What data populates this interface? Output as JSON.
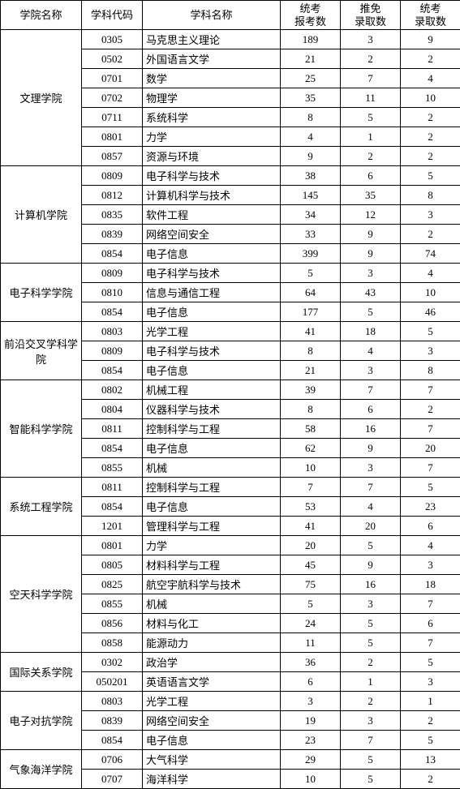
{
  "headers": {
    "college": "学院名称",
    "code": "学科代码",
    "subject": "学科名称",
    "exam_apply": "统考\n报考数",
    "rec_admit": "推免\n录取数",
    "exam_admit": "统考\n录取数"
  },
  "groups": [
    {
      "college": "文理学院",
      "rows": [
        {
          "code": "0305",
          "subject": "马克思主义理论",
          "a": "189",
          "b": "3",
          "c": "9"
        },
        {
          "code": "0502",
          "subject": "外国语言文学",
          "a": "21",
          "b": "2",
          "c": "2"
        },
        {
          "code": "0701",
          "subject": "数学",
          "a": "25",
          "b": "7",
          "c": "4"
        },
        {
          "code": "0702",
          "subject": "物理学",
          "a": "35",
          "b": "11",
          "c": "10"
        },
        {
          "code": "0711",
          "subject": "系统科学",
          "a": "8",
          "b": "5",
          "c": "2"
        },
        {
          "code": "0801",
          "subject": "力学",
          "a": "4",
          "b": "1",
          "c": "2"
        },
        {
          "code": "0857",
          "subject": "资源与环境",
          "a": "9",
          "b": "2",
          "c": "2"
        }
      ]
    },
    {
      "college": "计算机学院",
      "rows": [
        {
          "code": "0809",
          "subject": "电子科学与技术",
          "a": "38",
          "b": "6",
          "c": "5"
        },
        {
          "code": "0812",
          "subject": "计算机科学与技术",
          "a": "145",
          "b": "35",
          "c": "8"
        },
        {
          "code": "0835",
          "subject": "软件工程",
          "a": "34",
          "b": "12",
          "c": "3"
        },
        {
          "code": "0839",
          "subject": "网络空间安全",
          "a": "33",
          "b": "9",
          "c": "2"
        },
        {
          "code": "0854",
          "subject": "电子信息",
          "a": "399",
          "b": "9",
          "c": "74"
        }
      ]
    },
    {
      "college": "电子科学学院",
      "rows": [
        {
          "code": "0809",
          "subject": "电子科学与技术",
          "a": "5",
          "b": "3",
          "c": "4"
        },
        {
          "code": "0810",
          "subject": "信息与通信工程",
          "a": "64",
          "b": "43",
          "c": "10"
        },
        {
          "code": "0854",
          "subject": "电子信息",
          "a": "177",
          "b": "5",
          "c": "46"
        }
      ]
    },
    {
      "college": "前沿交叉学科学院",
      "rows": [
        {
          "code": "0803",
          "subject": "光学工程",
          "a": "41",
          "b": "18",
          "c": "5"
        },
        {
          "code": "0809",
          "subject": "电子科学与技术",
          "a": "8",
          "b": "4",
          "c": "3"
        },
        {
          "code": "0854",
          "subject": "电子信息",
          "a": "21",
          "b": "3",
          "c": "8"
        }
      ]
    },
    {
      "college": "智能科学学院",
      "rows": [
        {
          "code": "0802",
          "subject": "机械工程",
          "a": "39",
          "b": "7",
          "c": "7"
        },
        {
          "code": "0804",
          "subject": "仪器科学与技术",
          "a": "8",
          "b": "6",
          "c": "2"
        },
        {
          "code": "0811",
          "subject": "控制科学与工程",
          "a": "58",
          "b": "16",
          "c": "7"
        },
        {
          "code": "0854",
          "subject": "电子信息",
          "a": "62",
          "b": "9",
          "c": "20"
        },
        {
          "code": "0855",
          "subject": "机械",
          "a": "10",
          "b": "3",
          "c": "7"
        }
      ]
    },
    {
      "college": "系统工程学院",
      "rows": [
        {
          "code": "0811",
          "subject": "控制科学与工程",
          "a": "7",
          "b": "7",
          "c": "5"
        },
        {
          "code": "0854",
          "subject": "电子信息",
          "a": "53",
          "b": "4",
          "c": "23"
        },
        {
          "code": "1201",
          "subject": "管理科学与工程",
          "a": "41",
          "b": "20",
          "c": "6"
        }
      ]
    },
    {
      "college": "空天科学学院",
      "rows": [
        {
          "code": "0801",
          "subject": "力学",
          "a": "20",
          "b": "5",
          "c": "4"
        },
        {
          "code": "0805",
          "subject": "材料科学与工程",
          "a": "45",
          "b": "9",
          "c": "3"
        },
        {
          "code": "0825",
          "subject": "航空宇航科学与技术",
          "a": "75",
          "b": "16",
          "c": "18"
        },
        {
          "code": "0855",
          "subject": "机械",
          "a": "5",
          "b": "3",
          "c": "7"
        },
        {
          "code": "0856",
          "subject": "材料与化工",
          "a": "24",
          "b": "5",
          "c": "6"
        },
        {
          "code": "0858",
          "subject": "能源动力",
          "a": "11",
          "b": "5",
          "c": "7"
        }
      ]
    },
    {
      "college": "国际关系学院",
      "rows": [
        {
          "code": "0302",
          "subject": "政治学",
          "a": "36",
          "b": "2",
          "c": "5"
        },
        {
          "code": "050201",
          "subject": "英语语言文学",
          "a": "6",
          "b": "1",
          "c": "3"
        }
      ]
    },
    {
      "college": "电子对抗学院",
      "rows": [
        {
          "code": "0803",
          "subject": "光学工程",
          "a": "3",
          "b": "2",
          "c": "1"
        },
        {
          "code": "0839",
          "subject": "网络空间安全",
          "a": "19",
          "b": "3",
          "c": "2"
        },
        {
          "code": "0854",
          "subject": "电子信息",
          "a": "23",
          "b": "7",
          "c": "5"
        }
      ]
    },
    {
      "college": "气象海洋学院",
      "rows": [
        {
          "code": "0706",
          "subject": "大气科学",
          "a": "29",
          "b": "5",
          "c": "13"
        },
        {
          "code": "0707",
          "subject": "海洋科学",
          "a": "10",
          "b": "5",
          "c": "2"
        }
      ]
    }
  ]
}
